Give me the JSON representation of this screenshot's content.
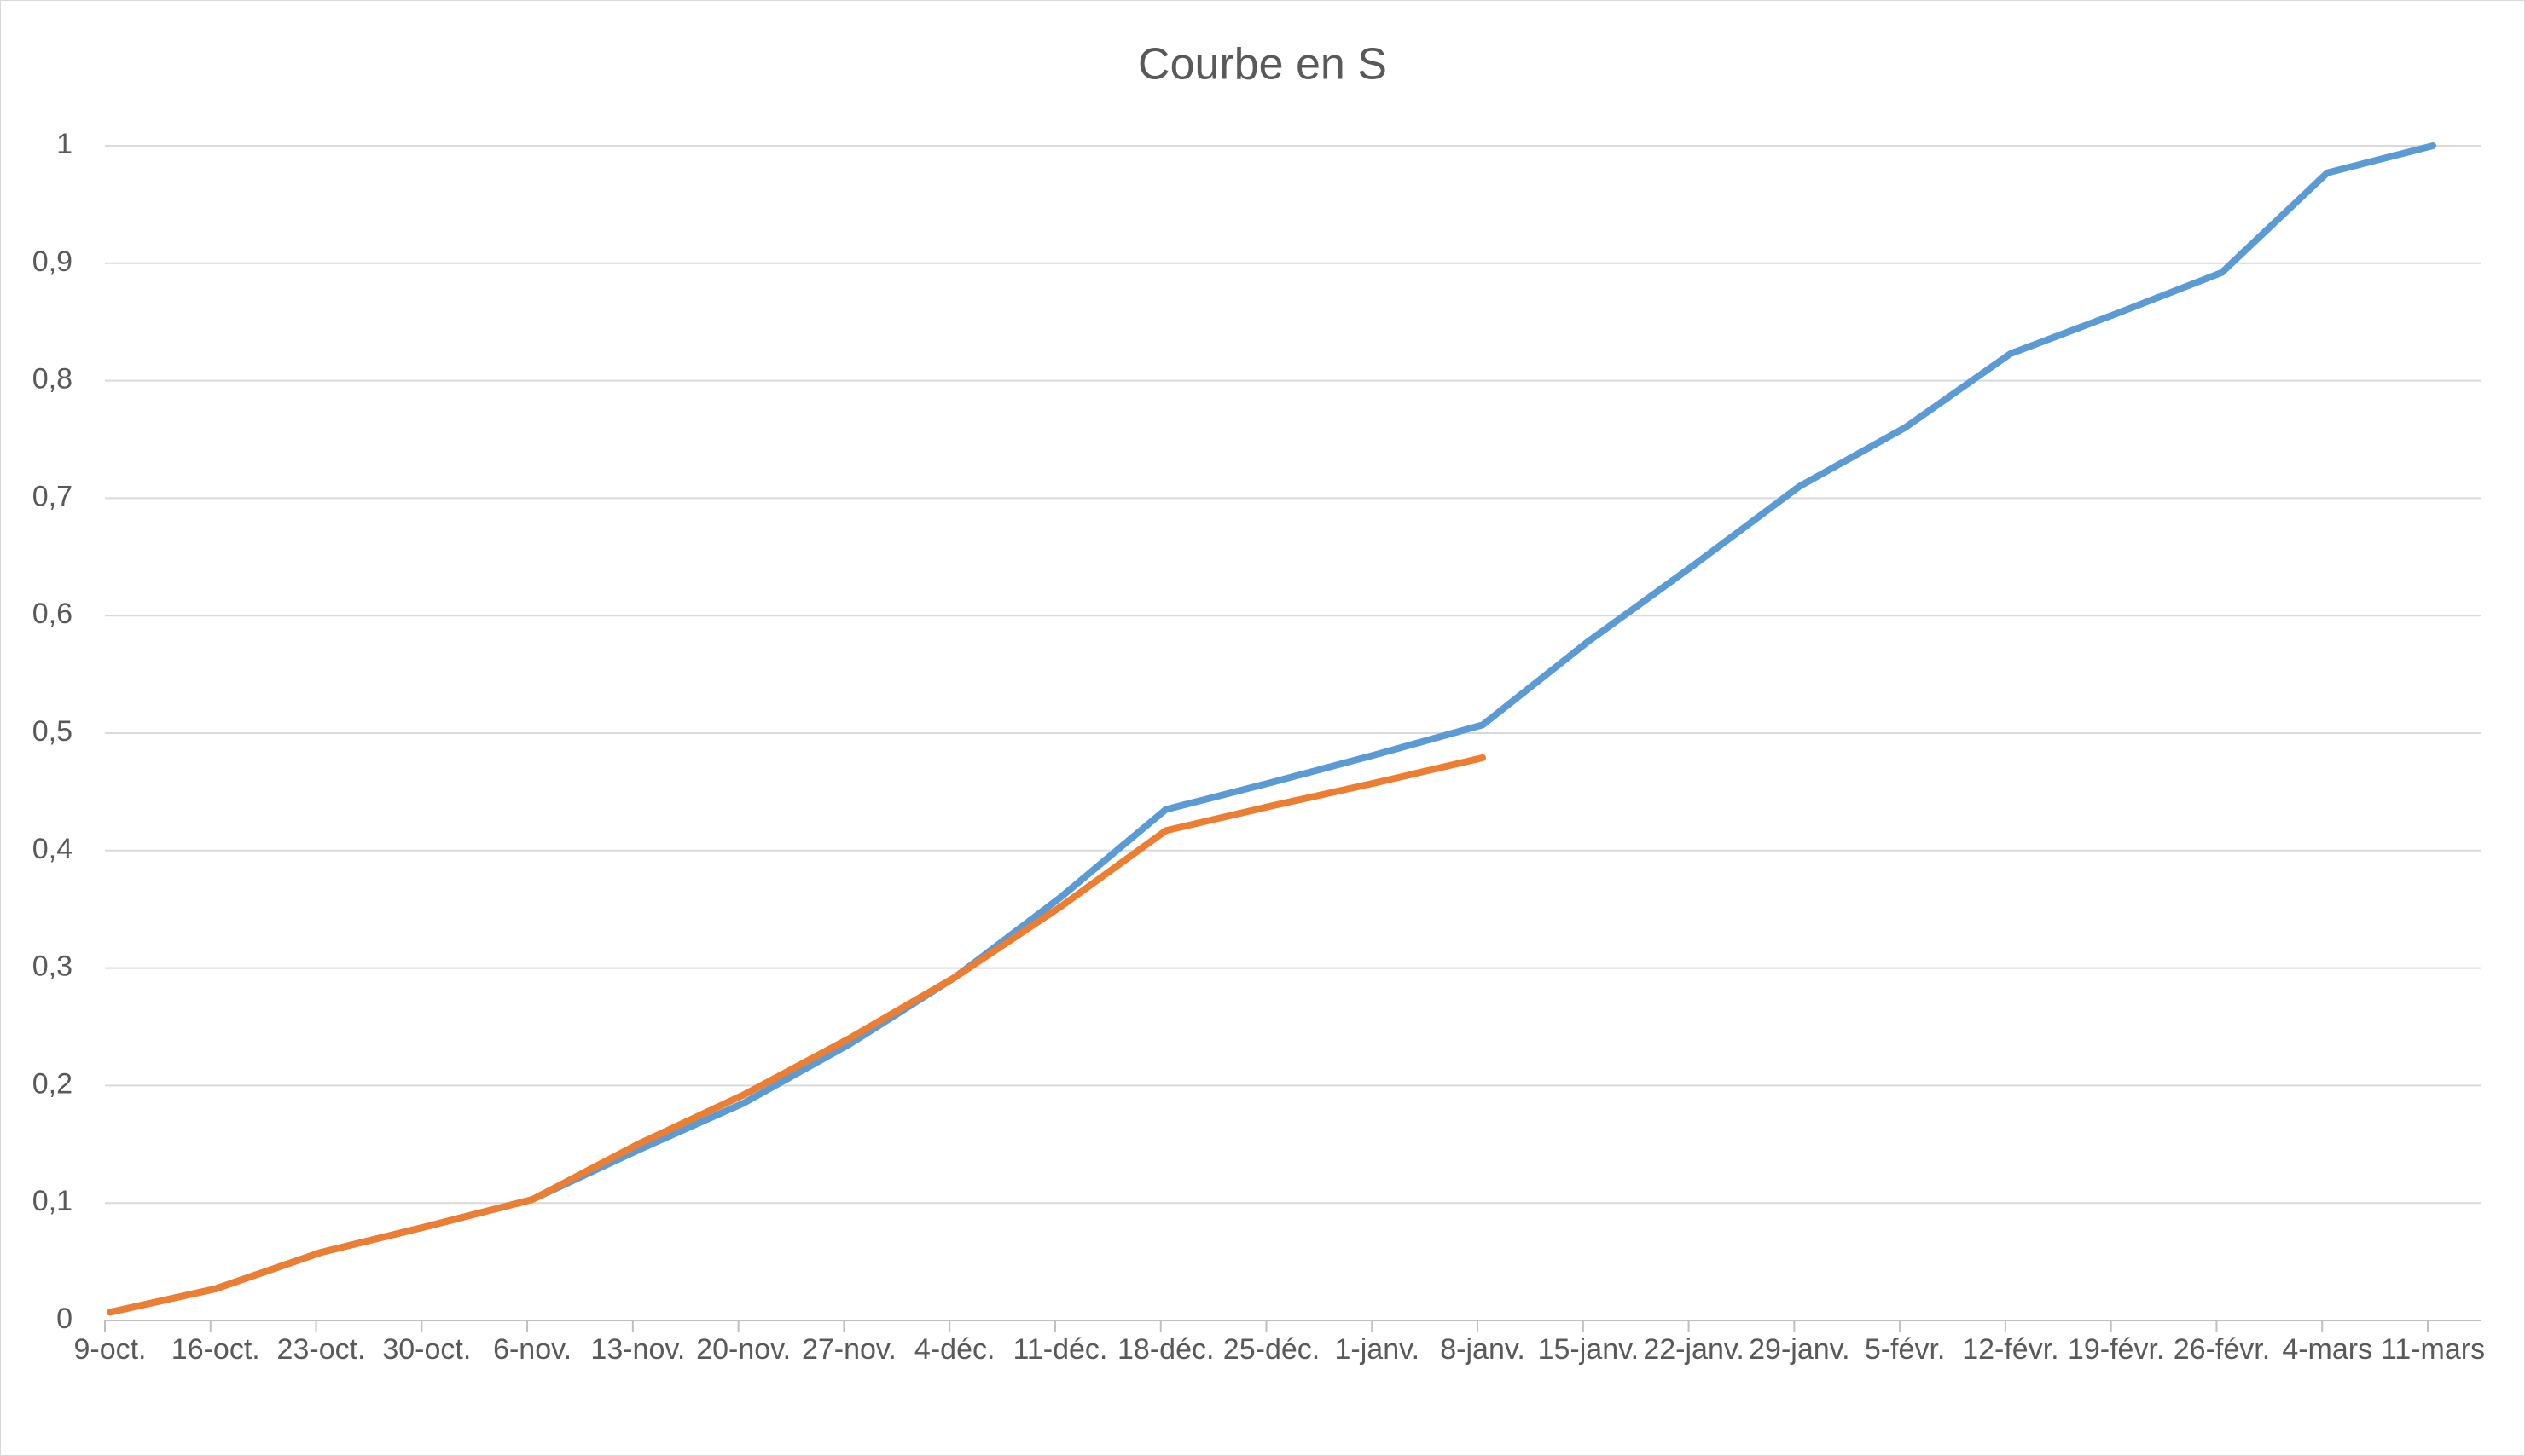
{
  "chart_data": {
    "type": "line",
    "title": "Courbe en S",
    "categories": [
      "9-oct.",
      "16-oct.",
      "23-oct.",
      "30-oct.",
      "6-nov.",
      "13-nov.",
      "20-nov.",
      "27-nov.",
      "4-déc.",
      "11-déc.",
      "18-déc.",
      "25-déc.",
      "1-janv.",
      "8-janv.",
      "15-janv.",
      "22-janv.",
      "29-janv.",
      "5-févr.",
      "12-févr.",
      "19-févr.",
      "26-févr.",
      "4-mars",
      "11-mars"
    ],
    "series": [
      {
        "color": "#5b9bd5",
        "values": [
          0.007,
          0.027,
          0.058,
          0.08,
          0.103,
          0.145,
          0.185,
          0.235,
          0.292,
          0.36,
          0.435,
          0.458,
          0.482,
          0.507,
          0.578,
          0.643,
          0.71,
          0.76,
          0.823,
          0.857,
          0.892,
          0.977,
          1.0
        ]
      },
      {
        "color": "#ed7d31",
        "values": [
          0.007,
          0.027,
          0.058,
          0.08,
          0.103,
          0.15,
          0.192,
          0.24,
          0.292,
          0.352,
          0.417,
          0.438,
          0.458,
          0.479,
          null,
          null,
          null,
          null,
          null,
          null,
          null,
          null,
          null
        ]
      }
    ],
    "ylim": [
      0,
      1
    ],
    "yticks": [
      0,
      {
        "value": 0.1,
        "label": "0,1"
      },
      {
        "value": 0.2,
        "label": "0,2"
      },
      {
        "value": 0.3,
        "label": "0,3"
      },
      {
        "value": 0.4,
        "label": "0,4"
      },
      {
        "value": 0.5,
        "label": "0,5"
      },
      {
        "value": 0.6,
        "label": "0,6"
      },
      {
        "value": 0.7,
        "label": "0,7"
      },
      {
        "value": 0.8,
        "label": "0,8"
      },
      {
        "value": 0.9,
        "label": "0,9"
      },
      1
    ],
    "grid": true
  }
}
